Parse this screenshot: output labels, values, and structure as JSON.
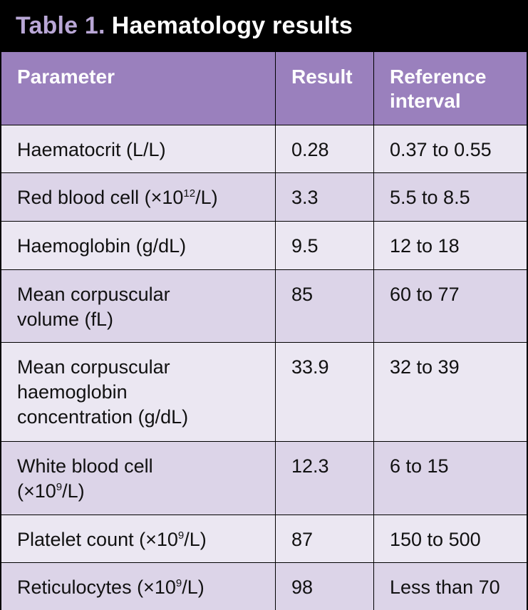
{
  "title": {
    "prefix": "Table 1.",
    "text": "Haematology results"
  },
  "headers": {
    "parameter": "Parameter",
    "result": "Result",
    "reference": "Reference interval"
  },
  "rows": [
    {
      "name": "Haematocrit (L/L)",
      "result": "0.28",
      "reference": "0.37 to 0.55"
    },
    {
      "name_pre": "Red blood cell (×10",
      "name_sup": "12",
      "name_post": "/L)",
      "result": "3.3",
      "reference": "5.5 to 8.5"
    },
    {
      "name": "Haemoglobin (g/dL)",
      "result": "9.5",
      "reference": "12 to 18"
    },
    {
      "name": "Mean corpuscular volume (fL)",
      "result": "85",
      "reference": "60 to 77"
    },
    {
      "name": "Mean corpuscular haemoglobin concentration (g/dL)",
      "result": "33.9",
      "reference": "32 to 39"
    },
    {
      "name_pre": "White blood cell (×10",
      "name_sup": "9",
      "name_post": "/L)",
      "result": "12.3",
      "reference": "6 to 15"
    },
    {
      "name_pre": "Platelet count (×10",
      "name_sup": "9",
      "name_post": "/L)",
      "result": "87",
      "reference": "150 to 500"
    },
    {
      "name_pre": "Reticulocytes (×10",
      "name_sup": "9",
      "name_post": "/L)",
      "result": "98",
      "reference": "Less than 70"
    }
  ]
}
